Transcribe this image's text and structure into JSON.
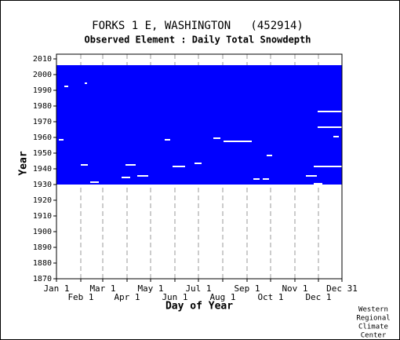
{
  "chart_data": {
    "type": "coverage",
    "title": "FORKS 1 E, WASHINGTON   (452914)",
    "subtitle": "Observed Element : Daily Total Snowdepth",
    "xlabel": "Day of Year",
    "ylabel": "Year",
    "credit": [
      "Western",
      "Regional",
      "Climate",
      "Center"
    ],
    "color": "#0000ff",
    "xlim": [
      1,
      365
    ],
    "xticks": [
      {
        "value": 1,
        "label": "Jan 1"
      },
      {
        "value": 32,
        "label": "Feb 1"
      },
      {
        "value": 60,
        "label": "Mar 1"
      },
      {
        "value": 91,
        "label": "Apr 1"
      },
      {
        "value": 121,
        "label": "May 1"
      },
      {
        "value": 152,
        "label": "Jun 1"
      },
      {
        "value": 182,
        "label": "Jul 1"
      },
      {
        "value": 213,
        "label": "Aug 1"
      },
      {
        "value": 244,
        "label": "Sep 1"
      },
      {
        "value": 274,
        "label": "Oct 1"
      },
      {
        "value": 305,
        "label": "Nov 1"
      },
      {
        "value": 335,
        "label": "Dec 1"
      },
      {
        "value": 365,
        "label": "Dec 31"
      }
    ],
    "ylim": [
      1870,
      2013
    ],
    "yticks": [
      1870,
      1880,
      1890,
      1900,
      1910,
      1920,
      1930,
      1940,
      1950,
      1960,
      1970,
      1980,
      1990,
      2000,
      2010
    ],
    "observed_years": [
      1930,
      2005
    ],
    "missing": [
      {
        "year": 1976,
        "start_day": 334,
        "end_day": 365
      },
      {
        "year": 1966,
        "start_day": 334,
        "end_day": 365
      },
      {
        "year": 1941,
        "start_day": 329,
        "end_day": 365
      },
      {
        "year": 1960,
        "start_day": 354,
        "end_day": 360
      },
      {
        "year": 1957,
        "start_day": 214,
        "end_day": 249
      },
      {
        "year": 1959,
        "start_day": 201,
        "end_day": 209
      },
      {
        "year": 1958,
        "start_day": 139,
        "end_day": 145
      },
      {
        "year": 1958,
        "start_day": 4,
        "end_day": 9
      },
      {
        "year": 1931,
        "start_day": 44,
        "end_day": 54
      },
      {
        "year": 1941,
        "start_day": 149,
        "end_day": 164
      },
      {
        "year": 1943,
        "start_day": 177,
        "end_day": 185
      },
      {
        "year": 1930,
        "start_day": 329,
        "end_day": 339
      },
      {
        "year": 1942,
        "start_day": 32,
        "end_day": 40
      },
      {
        "year": 1934,
        "start_day": 84,
        "end_day": 94
      },
      {
        "year": 1935,
        "start_day": 104,
        "end_day": 117
      },
      {
        "year": 1933,
        "start_day": 252,
        "end_day": 259
      },
      {
        "year": 1933,
        "start_day": 264,
        "end_day": 271
      },
      {
        "year": 1948,
        "start_day": 269,
        "end_day": 275
      },
      {
        "year": 1942,
        "start_day": 89,
        "end_day": 101
      },
      {
        "year": 1992,
        "start_day": 11,
        "end_day": 15
      },
      {
        "year": 1994,
        "start_day": 37,
        "end_day": 39
      },
      {
        "year": 1935,
        "start_day": 319,
        "end_day": 332
      }
    ]
  }
}
